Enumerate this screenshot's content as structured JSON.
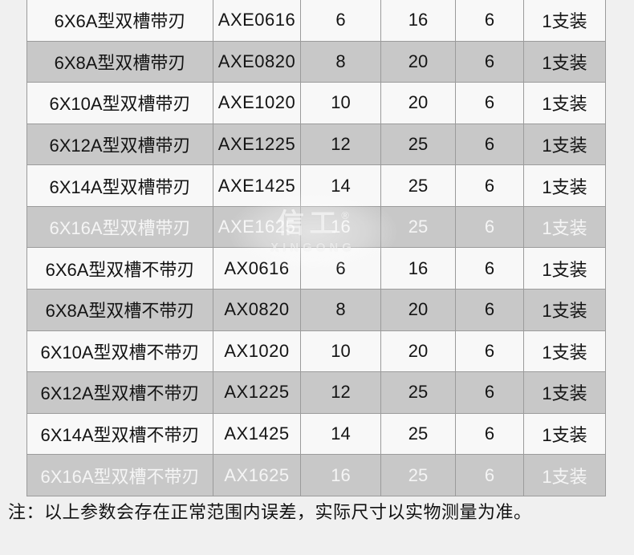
{
  "page": {
    "background": "#f0f0f0"
  },
  "table": {
    "colors": {
      "row_light_bg": "#f8f8f8",
      "row_gray_bg": "#c8c8c8",
      "text": "#141414",
      "highlight_text": "#f5f5f5",
      "border": "#9b9b9b"
    },
    "rows": [
      {
        "cells": [
          "6X6A型双槽带刃",
          "AXE0616",
          "6",
          "16",
          "6",
          "1支装"
        ],
        "white_text": false
      },
      {
        "cells": [
          "6X8A型双槽带刃",
          "AXE0820",
          "8",
          "20",
          "6",
          "1支装"
        ],
        "white_text": false
      },
      {
        "cells": [
          "6X10A型双槽带刃",
          "AXE1020",
          "10",
          "20",
          "6",
          "1支装"
        ],
        "white_text": false
      },
      {
        "cells": [
          "6X12A型双槽带刃",
          "AXE1225",
          "12",
          "25",
          "6",
          "1支装"
        ],
        "white_text": false
      },
      {
        "cells": [
          "6X14A型双槽带刃",
          "AXE1425",
          "14",
          "25",
          "6",
          "1支装"
        ],
        "white_text": false
      },
      {
        "cells": [
          "6X16A型双槽带刃",
          "AXE1625",
          "16",
          "25",
          "6",
          "1支装"
        ],
        "white_text": true
      },
      {
        "cells": [
          "6X6A型双槽不带刃",
          "AX0616",
          "6",
          "16",
          "6",
          "1支装"
        ],
        "white_text": false
      },
      {
        "cells": [
          "6X8A型双槽不带刃",
          "AX0820",
          "8",
          "20",
          "6",
          "1支装"
        ],
        "white_text": false
      },
      {
        "cells": [
          "6X10A型双槽不带刃",
          "AX1020",
          "10",
          "20",
          "6",
          "1支装"
        ],
        "white_text": false
      },
      {
        "cells": [
          "6X12A型双槽不带刃",
          "AX1225",
          "12",
          "25",
          "6",
          "1支装"
        ],
        "white_text": false
      },
      {
        "cells": [
          "6X14A型双槽不带刃",
          "AX1425",
          "14",
          "25",
          "6",
          "1支装"
        ],
        "white_text": false
      },
      {
        "cells": [
          "6X16A型双槽不带刃",
          "AX1625",
          "16",
          "25",
          "6",
          "1支装"
        ],
        "white_text": true
      }
    ]
  },
  "watermark": {
    "cn": "信工",
    "reg": "®",
    "latin": "XINGONG"
  },
  "note": {
    "text": "注：以上参数会存在正常范围内误差，实际尺寸以实物测量为准。"
  }
}
